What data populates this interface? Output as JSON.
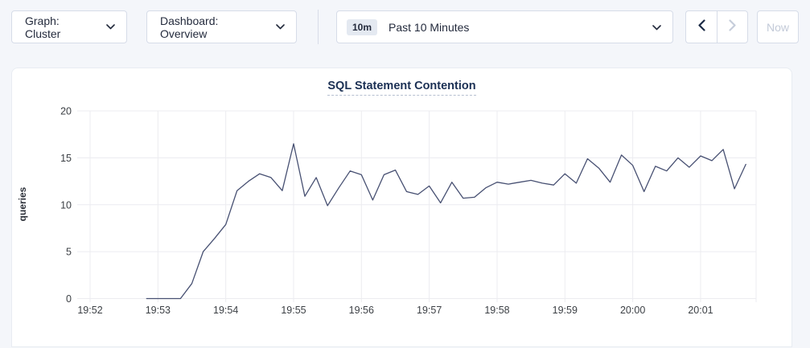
{
  "toolbar": {
    "graph_dropdown_label": "Graph: Cluster",
    "dashboard_dropdown_label": "Dashboard: Overview",
    "time_badge": "10m",
    "time_selected": "Past 10 Minutes",
    "now_button_label": "Now",
    "icons": [
      "chevron-down-icon",
      "chevron-left-icon",
      "chevron-right-icon"
    ],
    "prev_enabled": true,
    "next_enabled": false,
    "now_enabled": false
  },
  "colors": {
    "page_background": "#f4f6fa",
    "card_background": "#ffffff",
    "line": "#475072",
    "grid": "#ececf0",
    "tick_text": "#3b3f44",
    "title_text": "#1b3054",
    "border": "#d6dce8",
    "disabled_text": "#c3cad8",
    "enabled_icon": "#1c2b46"
  },
  "chart_data": {
    "type": "line",
    "title": "SQL Statement Contention",
    "ylabel": "queries",
    "ylim": [
      0,
      20
    ],
    "yticks": [
      0,
      5,
      10,
      15,
      20
    ],
    "x_tick_labels": [
      "19:52",
      "19:53",
      "19:54",
      "19:55",
      "19:56",
      "19:57",
      "19:58",
      "19:59",
      "20:00",
      "20:01"
    ],
    "grid": true,
    "legend": "none",
    "series": [
      {
        "name": "queries",
        "start_time": "19:52:50",
        "interval_seconds": 10,
        "end_time": "20:01:40",
        "values": [
          0,
          0,
          0,
          0,
          1.6,
          5.0,
          6.4,
          7.9,
          11.5,
          12.5,
          13.3,
          12.9,
          11.5,
          16.5,
          10.9,
          12.9,
          9.9,
          11.8,
          13.6,
          13.2,
          10.5,
          13.2,
          13.7,
          11.4,
          11.1,
          12.0,
          10.2,
          12.4,
          10.7,
          10.8,
          11.8,
          12.4,
          12.2,
          12.4,
          12.6,
          12.3,
          12.1,
          13.3,
          12.3,
          14.9,
          13.9,
          12.4,
          15.3,
          14.2,
          11.4,
          14.1,
          13.6,
          15.0,
          14.0,
          15.2,
          14.7,
          15.9,
          11.7,
          14.3
        ]
      }
    ]
  }
}
